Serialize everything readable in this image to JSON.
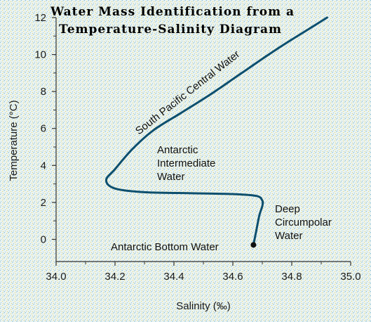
{
  "chart_data": {
    "type": "line",
    "title_line1": "Water Mass Identification from a",
    "title_line2": "Temperature-Salinity Diagram",
    "xlabel": "Salinity (‰)",
    "ylabel": "Temperature (°C)",
    "xlim": [
      34.0,
      35.0
    ],
    "ylim": [
      -1.2,
      12
    ],
    "xticks": [
      "34.0",
      "34.2",
      "34.4",
      "34.6",
      "34.8",
      "35.0"
    ],
    "yticks": [
      "0",
      "2",
      "4",
      "6",
      "8",
      "10",
      "12"
    ],
    "grid": false,
    "series": [
      {
        "color": "#0d4f6e",
        "x": [
          34.67,
          34.68,
          34.69,
          34.7,
          34.7,
          34.68,
          34.6,
          34.45,
          34.3,
          34.2,
          34.17,
          34.2,
          34.26,
          34.33,
          34.42,
          34.52,
          34.63,
          34.75,
          34.87,
          34.92
        ],
        "y": [
          -0.3,
          0.5,
          1.3,
          1.8,
          2.1,
          2.35,
          2.45,
          2.5,
          2.55,
          2.75,
          3.2,
          3.8,
          4.9,
          5.9,
          6.8,
          7.8,
          9.0,
          10.3,
          11.5,
          12.0
        ]
      }
    ],
    "points": [
      {
        "x": 34.67,
        "y": -0.3,
        "color": "#111111"
      }
    ],
    "annotations": [
      {
        "label": "South Pacific Central Water"
      },
      {
        "lines": [
          "Antarctic",
          "Intermediate",
          "Water"
        ]
      },
      {
        "lines": [
          "Deep",
          "Circumpolar",
          "Water"
        ]
      },
      {
        "label": "Antarctic Bottom Water"
      }
    ],
    "colors": {
      "background": "#eaf3f0",
      "speckle_blue": "#7fb8d4",
      "speckle_yellow": "#e8d86a",
      "axis": "#333333"
    }
  }
}
